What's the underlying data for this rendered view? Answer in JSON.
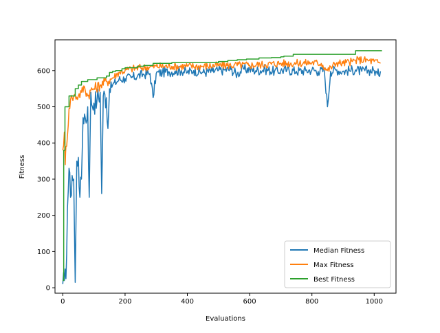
{
  "chart_data": {
    "type": "line",
    "title": "",
    "xlabel": "Evaluations",
    "ylabel": "Fitness",
    "xlim": [
      -25,
      1070
    ],
    "ylim": [
      -15,
      685
    ],
    "xticks": [
      0,
      200,
      400,
      600,
      800,
      1000
    ],
    "yticks": [
      0,
      100,
      200,
      300,
      400,
      500,
      600
    ],
    "grid": false,
    "legend_position": "lower-right",
    "series": [
      {
        "name": "Median Fitness",
        "color": "#1f77b4",
        "style": "noisy",
        "x": [
          0,
          5,
          10,
          15,
          20,
          25,
          30,
          35,
          40,
          45,
          50,
          55,
          60,
          65,
          70,
          75,
          80,
          85,
          90,
          95,
          100,
          110,
          120,
          125,
          130,
          140,
          145,
          150,
          160,
          180,
          200,
          220,
          240,
          260,
          280,
          290,
          300,
          320,
          340,
          360,
          380,
          400,
          420,
          450,
          480,
          500,
          520,
          540,
          560,
          580,
          600,
          620,
          650,
          680,
          700,
          720,
          750,
          780,
          800,
          820,
          840,
          850,
          860,
          880,
          900,
          920,
          940,
          960,
          980,
          1000,
          1010,
          1020
        ],
        "values": [
          10,
          20,
          25,
          220,
          330,
          250,
          310,
          300,
          15,
          350,
          360,
          250,
          300,
          470,
          480,
          455,
          500,
          250,
          540,
          500,
          510,
          520,
          540,
          260,
          530,
          525,
          440,
          550,
          560,
          575,
          578,
          580,
          585,
          590,
          592,
          525,
          592,
          595,
          597,
          598,
          600,
          595,
          600,
          595,
          598,
          600,
          602,
          603,
          590,
          605,
          603,
          600,
          603,
          598,
          600,
          602,
          598,
          600,
          602,
          598,
          600,
          500,
          598,
          602,
          598,
          600,
          602,
          598,
          600,
          600,
          590,
          598
        ]
      },
      {
        "name": "Max Fitness",
        "color": "#ff7f0e",
        "style": "noisy",
        "x": [
          0,
          5,
          8,
          10,
          15,
          20,
          25,
          30,
          40,
          50,
          60,
          70,
          80,
          90,
          100,
          120,
          140,
          160,
          180,
          200,
          220,
          250,
          280,
          300,
          350,
          400,
          450,
          500,
          550,
          600,
          650,
          700,
          750,
          800,
          830,
          850,
          880,
          900,
          930,
          950,
          980,
          1000,
          1020
        ],
        "values": [
          380,
          430,
          340,
          390,
          420,
          495,
          520,
          525,
          530,
          530,
          540,
          555,
          530,
          545,
          550,
          560,
          570,
          580,
          595,
          600,
          605,
          608,
          610,
          612,
          612,
          612,
          612,
          614,
          615,
          615,
          617,
          620,
          620,
          622,
          620,
          600,
          622,
          620,
          625,
          630,
          628,
          625,
          620
        ]
      },
      {
        "name": "Best Fitness",
        "color": "#2ca02c",
        "style": "step",
        "x": [
          0,
          3,
          7,
          20,
          40,
          50,
          60,
          75,
          80,
          110,
          140,
          150,
          160,
          170,
          190,
          200,
          240,
          260,
          290,
          310,
          350,
          500,
          530,
          560,
          590,
          630,
          670,
          700,
          710,
          740,
          940,
          1000,
          1025
        ],
        "values": [
          20,
          380,
          500,
          530,
          550,
          560,
          570,
          570,
          575,
          580,
          585,
          595,
          598,
          600,
          605,
          608,
          612,
          614,
          620,
          620,
          622,
          625,
          628,
          630,
          632,
          635,
          636,
          638,
          640,
          645,
          655,
          655,
          655
        ]
      }
    ]
  }
}
